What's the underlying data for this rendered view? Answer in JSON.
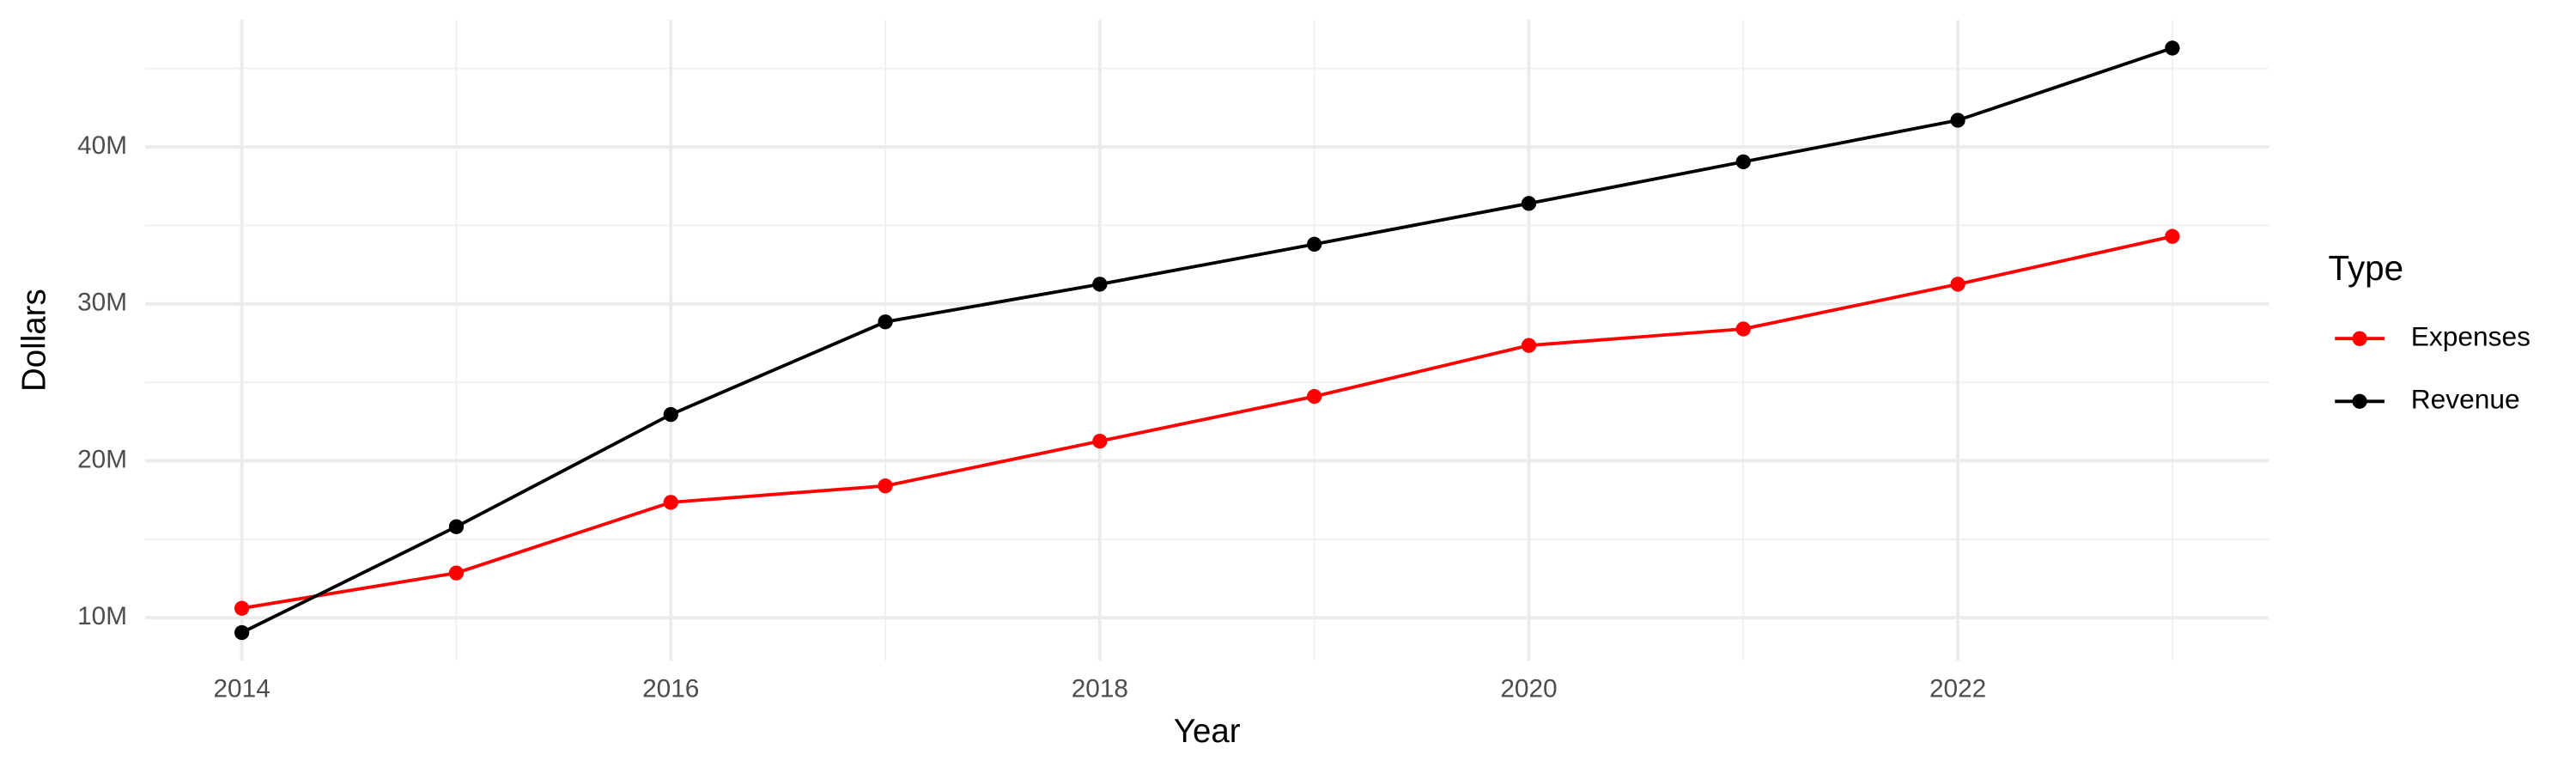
{
  "chart_data": {
    "type": "line",
    "x_label": "Year",
    "y_label": "Dollars",
    "legend_title": "Type",
    "x": [
      2014,
      2015,
      2016,
      2017,
      2018,
      2019,
      2020,
      2021,
      2022,
      2023
    ],
    "series": [
      {
        "name": "Expenses",
        "color": "#ff0000",
        "values": [
          10600000,
          12850000,
          17350000,
          18400000,
          21250000,
          24100000,
          27350000,
          28400000,
          31250000,
          34300000
        ]
      },
      {
        "name": "Revenue",
        "color": "#000000",
        "values": [
          9050000,
          15800000,
          22950000,
          28850000,
          31250000,
          33800000,
          36400000,
          39050000,
          41700000,
          46300000
        ]
      }
    ],
    "xlim": [
      2013.55,
      2023.45
    ],
    "xticks": [
      2014,
      2016,
      2018,
      2020,
      2022
    ],
    "ylim": [
      7260000,
      48100000
    ],
    "yticks": [
      {
        "value": 10000000,
        "label": "10M"
      },
      {
        "value": 20000000,
        "label": "20M"
      },
      {
        "value": 30000000,
        "label": "30M"
      },
      {
        "value": 40000000,
        "label": "40M"
      }
    ],
    "grid": true,
    "legend": "right"
  }
}
